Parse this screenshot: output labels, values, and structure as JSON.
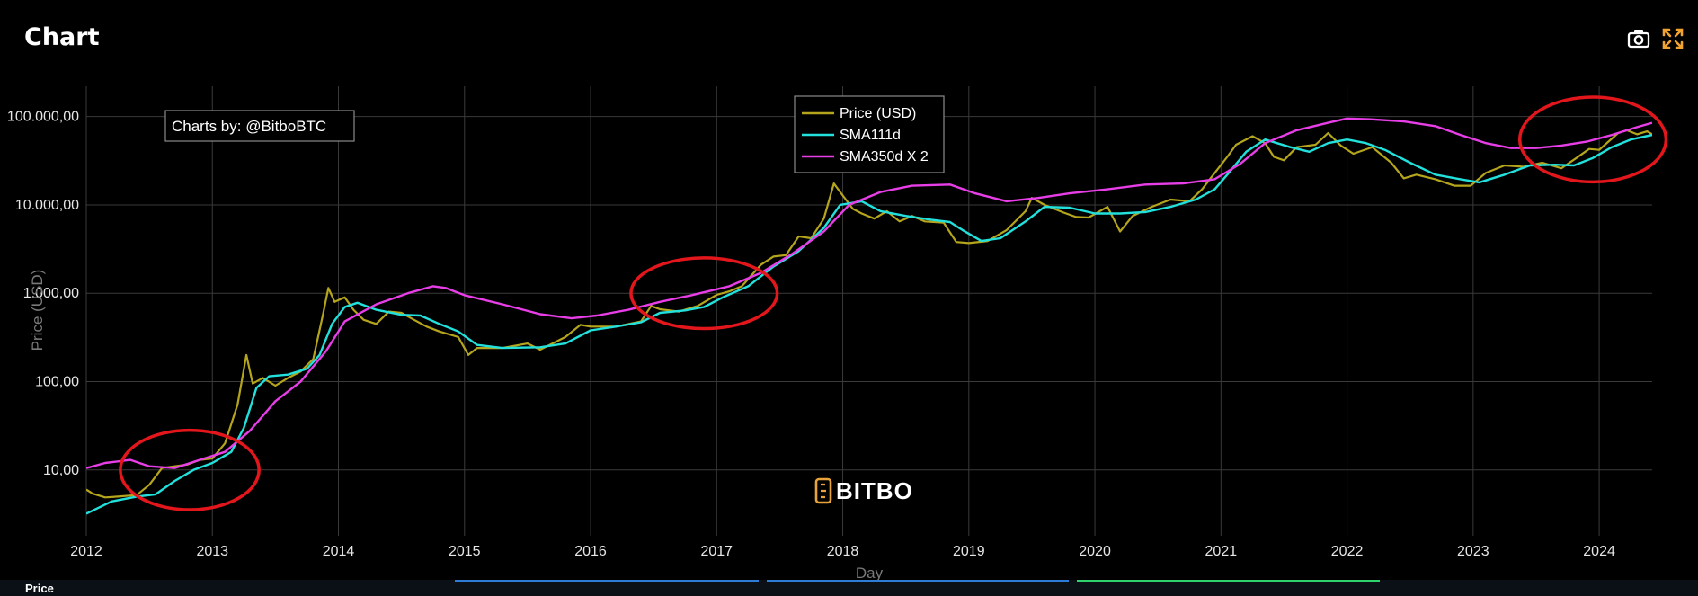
{
  "header": {
    "title": "Chart"
  },
  "toolbar": {
    "camera_icon": "camera-icon",
    "fullscreen_icon": "fullscreen-icon"
  },
  "footer": {
    "tab_label": "Price",
    "accent_colors": [
      "#2f7bd8",
      "#2f7bd8",
      "#2fd36b"
    ]
  },
  "watermark": {
    "credit": "Charts by: @BitboBTC",
    "logo_text": "BITBO",
    "logo_color": "#e8a33a"
  },
  "colors": {
    "price": "#b5a51c",
    "sma111": "#22e0dc",
    "sma350": "#e83ee8",
    "annotation": "#e3161c",
    "grid": "#3a3a3a"
  },
  "chart_data": {
    "type": "line",
    "xlabel": "Day",
    "ylabel": "Price (USD)",
    "yscale": "log",
    "xlim": [
      2012.0,
      2024.42
    ],
    "ylim": [
      1.8,
      220000
    ],
    "x_ticks": [
      "2012",
      "2013",
      "2014",
      "2015",
      "2016",
      "2017",
      "2018",
      "2019",
      "2020",
      "2021",
      "2022",
      "2023",
      "2024"
    ],
    "y_ticks": [
      {
        "value": 10,
        "label": "10,00"
      },
      {
        "value": 100,
        "label": "100,00"
      },
      {
        "value": 1000,
        "label": "1.000,00"
      },
      {
        "value": 10000,
        "label": "10.000,00"
      },
      {
        "value": 100000,
        "label": "100.000,00"
      }
    ],
    "legend": {
      "position": "top-center"
    },
    "series": [
      {
        "name": "Price (USD)",
        "color": "#b5a51c",
        "points": [
          [
            2012.0,
            6
          ],
          [
            2012.05,
            5.4
          ],
          [
            2012.15,
            4.9
          ],
          [
            2012.25,
            5
          ],
          [
            2012.4,
            5.2
          ],
          [
            2012.5,
            6.8
          ],
          [
            2012.6,
            10.5
          ],
          [
            2012.7,
            11
          ],
          [
            2012.8,
            11.5
          ],
          [
            2012.9,
            13
          ],
          [
            2013.0,
            13.5
          ],
          [
            2013.1,
            20
          ],
          [
            2013.2,
            55
          ],
          [
            2013.27,
            200
          ],
          [
            2013.32,
            95
          ],
          [
            2013.4,
            110
          ],
          [
            2013.5,
            90
          ],
          [
            2013.6,
            110
          ],
          [
            2013.7,
            130
          ],
          [
            2013.8,
            180
          ],
          [
            2013.88,
            600
          ],
          [
            2013.92,
            1150
          ],
          [
            2013.97,
            800
          ],
          [
            2014.05,
            900
          ],
          [
            2014.12,
            650
          ],
          [
            2014.2,
            500
          ],
          [
            2014.3,
            450
          ],
          [
            2014.4,
            620
          ],
          [
            2014.5,
            600
          ],
          [
            2014.6,
            500
          ],
          [
            2014.7,
            420
          ],
          [
            2014.8,
            370
          ],
          [
            2014.95,
            320
          ],
          [
            2015.03,
            200
          ],
          [
            2015.1,
            240
          ],
          [
            2015.3,
            240
          ],
          [
            2015.5,
            270
          ],
          [
            2015.6,
            230
          ],
          [
            2015.8,
            320
          ],
          [
            2015.92,
            440
          ],
          [
            2016.0,
            420
          ],
          [
            2016.2,
            420
          ],
          [
            2016.4,
            480
          ],
          [
            2016.48,
            720
          ],
          [
            2016.55,
            660
          ],
          [
            2016.7,
            620
          ],
          [
            2016.85,
            720
          ],
          [
            2017.0,
            960
          ],
          [
            2017.1,
            1050
          ],
          [
            2017.2,
            1200
          ],
          [
            2017.35,
            2100
          ],
          [
            2017.45,
            2600
          ],
          [
            2017.55,
            2700
          ],
          [
            2017.65,
            4400
          ],
          [
            2017.75,
            4200
          ],
          [
            2017.85,
            7000
          ],
          [
            2017.93,
            17500
          ],
          [
            2017.98,
            14000
          ],
          [
            2018.08,
            9000
          ],
          [
            2018.15,
            8000
          ],
          [
            2018.25,
            7000
          ],
          [
            2018.35,
            8500
          ],
          [
            2018.45,
            6500
          ],
          [
            2018.55,
            7500
          ],
          [
            2018.65,
            6500
          ],
          [
            2018.8,
            6300
          ],
          [
            2018.9,
            3800
          ],
          [
            2019.0,
            3700
          ],
          [
            2019.15,
            3900
          ],
          [
            2019.3,
            5200
          ],
          [
            2019.45,
            8500
          ],
          [
            2019.5,
            12000
          ],
          [
            2019.6,
            10000
          ],
          [
            2019.75,
            8200
          ],
          [
            2019.85,
            7300
          ],
          [
            2019.95,
            7200
          ],
          [
            2020.1,
            9500
          ],
          [
            2020.2,
            5000
          ],
          [
            2020.3,
            7500
          ],
          [
            2020.45,
            9500
          ],
          [
            2020.6,
            11500
          ],
          [
            2020.75,
            11000
          ],
          [
            2020.85,
            15000
          ],
          [
            2020.95,
            23000
          ],
          [
            2021.05,
            35000
          ],
          [
            2021.12,
            48000
          ],
          [
            2021.25,
            60000
          ],
          [
            2021.35,
            50000
          ],
          [
            2021.42,
            35000
          ],
          [
            2021.5,
            32000
          ],
          [
            2021.6,
            45000
          ],
          [
            2021.75,
            48000
          ],
          [
            2021.85,
            65000
          ],
          [
            2021.95,
            47000
          ],
          [
            2022.05,
            38000
          ],
          [
            2022.2,
            45000
          ],
          [
            2022.35,
            30000
          ],
          [
            2022.45,
            20000
          ],
          [
            2022.55,
            22000
          ],
          [
            2022.7,
            19500
          ],
          [
            2022.85,
            16500
          ],
          [
            2022.98,
            16500
          ],
          [
            2023.1,
            23000
          ],
          [
            2023.25,
            28000
          ],
          [
            2023.4,
            27000
          ],
          [
            2023.55,
            30000
          ],
          [
            2023.7,
            26000
          ],
          [
            2023.82,
            34000
          ],
          [
            2023.92,
            43000
          ],
          [
            2024.0,
            42000
          ],
          [
            2024.15,
            65000
          ],
          [
            2024.22,
            70000
          ],
          [
            2024.3,
            63000
          ],
          [
            2024.38,
            68000
          ],
          [
            2024.42,
            63000
          ]
        ]
      },
      {
        "name": "SMA111d",
        "color": "#22e0dc",
        "points": [
          [
            2012.0,
            3.2
          ],
          [
            2012.2,
            4.4
          ],
          [
            2012.4,
            5
          ],
          [
            2012.55,
            5.3
          ],
          [
            2012.7,
            7.5
          ],
          [
            2012.85,
            10
          ],
          [
            2013.0,
            12
          ],
          [
            2013.15,
            16
          ],
          [
            2013.25,
            30
          ],
          [
            2013.35,
            85
          ],
          [
            2013.45,
            115
          ],
          [
            2013.6,
            120
          ],
          [
            2013.75,
            140
          ],
          [
            2013.85,
            200
          ],
          [
            2013.95,
            450
          ],
          [
            2014.05,
            700
          ],
          [
            2014.15,
            780
          ],
          [
            2014.3,
            650
          ],
          [
            2014.5,
            570
          ],
          [
            2014.65,
            560
          ],
          [
            2014.8,
            450
          ],
          [
            2014.95,
            370
          ],
          [
            2015.1,
            260
          ],
          [
            2015.3,
            240
          ],
          [
            2015.6,
            245
          ],
          [
            2015.8,
            270
          ],
          [
            2016.0,
            380
          ],
          [
            2016.2,
            420
          ],
          [
            2016.4,
            470
          ],
          [
            2016.55,
            600
          ],
          [
            2016.75,
            640
          ],
          [
            2016.9,
            700
          ],
          [
            2017.05,
            900
          ],
          [
            2017.25,
            1200
          ],
          [
            2017.45,
            2000
          ],
          [
            2017.65,
            3000
          ],
          [
            2017.85,
            5500
          ],
          [
            2017.98,
            10000
          ],
          [
            2018.15,
            11000
          ],
          [
            2018.3,
            8500
          ],
          [
            2018.5,
            7500
          ],
          [
            2018.7,
            6800
          ],
          [
            2018.85,
            6400
          ],
          [
            2018.95,
            5200
          ],
          [
            2019.1,
            3900
          ],
          [
            2019.25,
            4200
          ],
          [
            2019.45,
            6500
          ],
          [
            2019.6,
            9500
          ],
          [
            2019.8,
            9300
          ],
          [
            2020.0,
            8000
          ],
          [
            2020.2,
            8000
          ],
          [
            2020.4,
            8300
          ],
          [
            2020.6,
            9500
          ],
          [
            2020.8,
            11500
          ],
          [
            2020.95,
            15000
          ],
          [
            2021.05,
            22000
          ],
          [
            2021.2,
            40000
          ],
          [
            2021.35,
            55000
          ],
          [
            2021.55,
            45000
          ],
          [
            2021.7,
            40000
          ],
          [
            2021.85,
            50000
          ],
          [
            2022.0,
            55000
          ],
          [
            2022.15,
            50000
          ],
          [
            2022.3,
            42000
          ],
          [
            2022.5,
            30000
          ],
          [
            2022.7,
            22000
          ],
          [
            2022.9,
            19500
          ],
          [
            2023.05,
            18000
          ],
          [
            2023.25,
            22000
          ],
          [
            2023.45,
            28000
          ],
          [
            2023.65,
            28500
          ],
          [
            2023.8,
            28000
          ],
          [
            2023.95,
            34000
          ],
          [
            2024.1,
            45000
          ],
          [
            2024.25,
            55000
          ],
          [
            2024.42,
            62000
          ]
        ]
      },
      {
        "name": "SMA350d X 2",
        "color": "#e83ee8",
        "points": [
          [
            2012.0,
            10.5
          ],
          [
            2012.15,
            12
          ],
          [
            2012.35,
            13
          ],
          [
            2012.5,
            11
          ],
          [
            2012.7,
            10.5
          ],
          [
            2012.9,
            13
          ],
          [
            2013.1,
            16
          ],
          [
            2013.3,
            28
          ],
          [
            2013.5,
            60
          ],
          [
            2013.7,
            100
          ],
          [
            2013.9,
            220
          ],
          [
            2014.05,
            480
          ],
          [
            2014.3,
            750
          ],
          [
            2014.55,
            1000
          ],
          [
            2014.75,
            1200
          ],
          [
            2014.85,
            1150
          ],
          [
            2015.0,
            950
          ],
          [
            2015.3,
            750
          ],
          [
            2015.6,
            580
          ],
          [
            2015.85,
            520
          ],
          [
            2016.05,
            560
          ],
          [
            2016.3,
            650
          ],
          [
            2016.55,
            800
          ],
          [
            2016.8,
            950
          ],
          [
            2017.1,
            1200
          ],
          [
            2017.35,
            1700
          ],
          [
            2017.6,
            2800
          ],
          [
            2017.85,
            5000
          ],
          [
            2018.05,
            10000
          ],
          [
            2018.3,
            14000
          ],
          [
            2018.55,
            16500
          ],
          [
            2018.85,
            17000
          ],
          [
            2019.05,
            13500
          ],
          [
            2019.3,
            11000
          ],
          [
            2019.55,
            12000
          ],
          [
            2019.8,
            13500
          ],
          [
            2020.1,
            15000
          ],
          [
            2020.4,
            17000
          ],
          [
            2020.7,
            17500
          ],
          [
            2020.95,
            19500
          ],
          [
            2021.15,
            29000
          ],
          [
            2021.35,
            50000
          ],
          [
            2021.6,
            70000
          ],
          [
            2021.85,
            85000
          ],
          [
            2022.0,
            95000
          ],
          [
            2022.2,
            93000
          ],
          [
            2022.45,
            88000
          ],
          [
            2022.7,
            78000
          ],
          [
            2022.9,
            62000
          ],
          [
            2023.1,
            50000
          ],
          [
            2023.3,
            44000
          ],
          [
            2023.5,
            44000
          ],
          [
            2023.7,
            47000
          ],
          [
            2023.9,
            52000
          ],
          [
            2024.1,
            62000
          ],
          [
            2024.3,
            76000
          ],
          [
            2024.42,
            85000
          ]
        ]
      }
    ],
    "annotations": [
      {
        "shape": "ellipse",
        "cx": 2012.82,
        "cy": 10,
        "rx_years": 0.55,
        "ry_decades": 0.45
      },
      {
        "shape": "ellipse",
        "cx": 2016.9,
        "cy": 1000,
        "rx_years": 0.58,
        "ry_decades": 0.4
      },
      {
        "shape": "ellipse",
        "cx": 2023.95,
        "cy": 55000,
        "rx_years": 0.58,
        "ry_decades": 0.48
      }
    ]
  }
}
